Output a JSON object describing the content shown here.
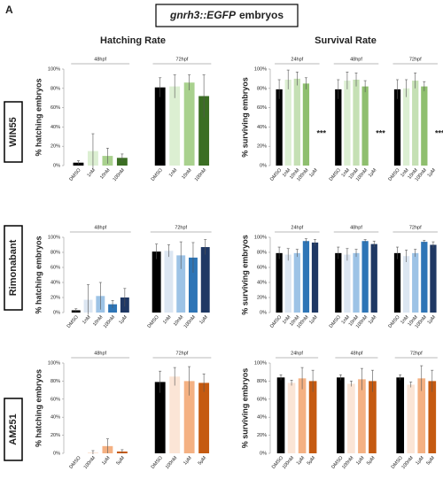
{
  "panel_label": "A",
  "title": {
    "italic": "gnrh3::EGFP",
    "plain": "embryos"
  },
  "column_titles": [
    "Hatching Rate",
    "Survival Rate"
  ],
  "row_labels": [
    "WIN55",
    "Rimonabant",
    "AM251"
  ],
  "chart_data": [
    {
      "type": "bar",
      "ylabel": "% hatching embryos",
      "ylim": [
        0,
        100
      ],
      "yticks": [
        {
          "value": 0,
          "label": "0%"
        },
        {
          "value": 20,
          "label": "20%"
        },
        {
          "value": 40,
          "label": "40%"
        },
        {
          "value": 60,
          "label": "60%"
        },
        {
          "value": 80,
          "label": "80%"
        },
        {
          "value": 100,
          "label": "100%"
        }
      ],
      "colors": [
        "#000000",
        "#dcefd2",
        "#a9d18e",
        "#3b6e23"
      ],
      "groups": [
        {
          "name": "48hpf",
          "categories": [
            "DMSO",
            "1nM",
            "10nM",
            "100nM"
          ],
          "values": [
            3,
            15,
            10,
            8
          ],
          "errors": [
            2,
            18,
            8,
            4
          ]
        },
        {
          "name": "72hpf",
          "categories": [
            "DMSO",
            "1nM",
            "10nM",
            "100nM"
          ],
          "values": [
            81,
            82,
            86,
            72
          ],
          "errors": [
            10,
            12,
            8,
            22
          ]
        }
      ]
    },
    {
      "type": "bar",
      "ylabel": "% surviving embryos",
      "ylim": [
        0,
        100
      ],
      "yticks": [
        {
          "value": 0,
          "label": "0%"
        },
        {
          "value": 20,
          "label": "20%"
        },
        {
          "value": 40,
          "label": "40%"
        },
        {
          "value": 60,
          "label": "60%"
        },
        {
          "value": 80,
          "label": "80%"
        },
        {
          "value": 100,
          "label": "100%"
        }
      ],
      "colors": [
        "#000000",
        "#dcefd2",
        "#c5e0b4",
        "#8fbf6f",
        "#3b6e23"
      ],
      "groups": [
        {
          "name": "24hpf",
          "categories": [
            "DMSO",
            "1nM",
            "10nM",
            "100nM",
            "1μM"
          ],
          "values": [
            79,
            89,
            90,
            85,
            0
          ],
          "errors": [
            10,
            10,
            7,
            6,
            0
          ],
          "annotation": "***"
        },
        {
          "name": "48hpf",
          "categories": [
            "DMSO",
            "1nM",
            "10nM",
            "100nM",
            "1μM"
          ],
          "values": [
            79,
            88,
            89,
            82,
            0
          ],
          "errors": [
            10,
            9,
            7,
            6,
            0
          ],
          "annotation": "***"
        },
        {
          "name": "72hpf",
          "categories": [
            "DMSO",
            "1nM",
            "10nM",
            "100nM",
            "1μM"
          ],
          "values": [
            79,
            80,
            88,
            82,
            0
          ],
          "errors": [
            10,
            9,
            8,
            5,
            0
          ],
          "annotation": "***"
        }
      ]
    },
    {
      "type": "bar",
      "ylabel": "% hatching embryos",
      "ylim": [
        0,
        100
      ],
      "yticks": [
        {
          "value": 0,
          "label": "0%"
        },
        {
          "value": 20,
          "label": "20%"
        },
        {
          "value": 40,
          "label": "40%"
        },
        {
          "value": 60,
          "label": "60%"
        },
        {
          "value": 80,
          "label": "80%"
        },
        {
          "value": 100,
          "label": "100%"
        }
      ],
      "colors": [
        "#000000",
        "#dce6f2",
        "#9dc3e6",
        "#2e75b6",
        "#1f3864"
      ],
      "groups": [
        {
          "name": "48hpf",
          "categories": [
            "DMSO",
            "1nM",
            "10nM",
            "100nM",
            "1μM"
          ],
          "values": [
            3,
            17,
            22,
            11,
            20
          ],
          "errors": [
            2,
            20,
            18,
            5,
            12
          ]
        },
        {
          "name": "72hpf",
          "categories": [
            "DMSO",
            "1nM",
            "10nM",
            "100nM",
            "1μM"
          ],
          "values": [
            81,
            82,
            76,
            73,
            87
          ],
          "errors": [
            10,
            8,
            18,
            20,
            10
          ]
        }
      ]
    },
    {
      "type": "bar",
      "ylabel": "% surviving embryos",
      "ylim": [
        0,
        100
      ],
      "yticks": [
        {
          "value": 0,
          "label": "0%"
        },
        {
          "value": 20,
          "label": "20%"
        },
        {
          "value": 40,
          "label": "40%"
        },
        {
          "value": 60,
          "label": "60%"
        },
        {
          "value": 80,
          "label": "80%"
        },
        {
          "value": 100,
          "label": "100%"
        }
      ],
      "colors": [
        "#000000",
        "#dce6f2",
        "#9dc3e6",
        "#2e75b6",
        "#1f3864"
      ],
      "groups": [
        {
          "name": "24hpf",
          "categories": [
            "DMSO",
            "1nM",
            "10nM",
            "100nM",
            "1μM"
          ],
          "values": [
            79,
            77,
            79,
            95,
            93
          ],
          "errors": [
            8,
            8,
            5,
            3,
            4
          ]
        },
        {
          "name": "48hpf",
          "categories": [
            "DMSO",
            "1nM",
            "10nM",
            "100nM",
            "1μM"
          ],
          "values": [
            79,
            77,
            79,
            95,
            91
          ],
          "errors": [
            8,
            8,
            5,
            2,
            4
          ]
        },
        {
          "name": "72hpf",
          "categories": [
            "DMSO",
            "1nM",
            "10nM",
            "100nM",
            "1μM"
          ],
          "values": [
            79,
            75,
            79,
            94,
            90
          ],
          "errors": [
            8,
            8,
            5,
            2,
            4
          ]
        }
      ]
    },
    {
      "type": "bar",
      "ylabel": "% hatching embryos",
      "ylim": [
        0,
        100
      ],
      "yticks": [
        {
          "value": 0,
          "label": "0%"
        },
        {
          "value": 20,
          "label": "20%"
        },
        {
          "value": 40,
          "label": "40%"
        },
        {
          "value": 60,
          "label": "60%"
        },
        {
          "value": 80,
          "label": "80%"
        },
        {
          "value": 100,
          "label": "100%"
        }
      ],
      "colors": [
        "#000000",
        "#fbe5d6",
        "#f4b183",
        "#c55a11"
      ],
      "groups": [
        {
          "name": "48hpf",
          "categories": [
            "DMSO",
            "100nM",
            "1μM",
            "5μM"
          ],
          "values": [
            0,
            1,
            8,
            2
          ],
          "errors": [
            0,
            2,
            8,
            2
          ]
        },
        {
          "name": "72hpf",
          "categories": [
            "DMSO",
            "100nM",
            "1μM",
            "5μM"
          ],
          "values": [
            79,
            85,
            80,
            78
          ],
          "errors": [
            12,
            10,
            16,
            10
          ]
        }
      ]
    },
    {
      "type": "bar",
      "ylabel": "% surviving embryos",
      "ylim": [
        0,
        100
      ],
      "yticks": [
        {
          "value": 0,
          "label": "0%"
        },
        {
          "value": 20,
          "label": "20%"
        },
        {
          "value": 40,
          "label": "40%"
        },
        {
          "value": 60,
          "label": "60%"
        },
        {
          "value": 80,
          "label": "80%"
        },
        {
          "value": 100,
          "label": "100%"
        }
      ],
      "colors": [
        "#000000",
        "#fbe5d6",
        "#f4b183",
        "#c55a11"
      ],
      "groups": [
        {
          "name": "24hpf",
          "categories": [
            "DMSO",
            "100nM",
            "1μM",
            "5μM"
          ],
          "values": [
            84,
            78,
            83,
            80
          ],
          "errors": [
            3,
            3,
            12,
            12
          ]
        },
        {
          "name": "48hpf",
          "categories": [
            "DMSO",
            "100nM",
            "1μM",
            "5μM"
          ],
          "values": [
            84,
            77,
            82,
            80
          ],
          "errors": [
            3,
            3,
            12,
            12
          ]
        },
        {
          "name": "72hpf",
          "categories": [
            "DMSO",
            "100nM",
            "1μM",
            "5μM"
          ],
          "values": [
            84,
            76,
            83,
            80
          ],
          "errors": [
            3,
            3,
            14,
            12
          ]
        }
      ]
    }
  ]
}
